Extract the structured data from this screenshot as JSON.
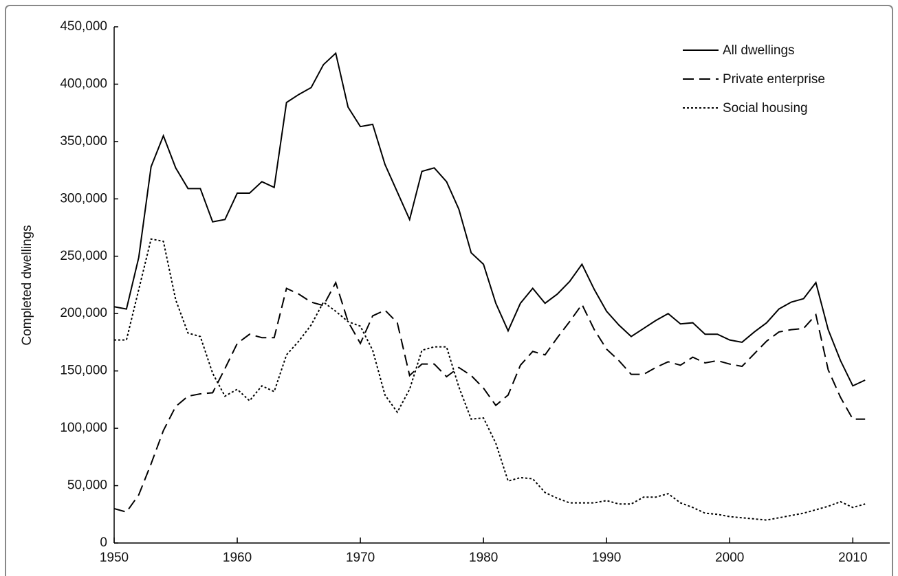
{
  "chart_data": {
    "type": "line",
    "y_label": "Completed dwellings",
    "x": [
      1950,
      1951,
      1952,
      1953,
      1954,
      1955,
      1956,
      1957,
      1958,
      1959,
      1960,
      1961,
      1962,
      1963,
      1964,
      1965,
      1966,
      1967,
      1968,
      1969,
      1970,
      1971,
      1972,
      1973,
      1974,
      1975,
      1976,
      1977,
      1978,
      1979,
      1980,
      1981,
      1982,
      1983,
      1984,
      1985,
      1986,
      1987,
      1988,
      1989,
      1990,
      1991,
      1992,
      1993,
      1994,
      1995,
      1996,
      1997,
      1998,
      1999,
      2000,
      2001,
      2002,
      2003,
      2004,
      2005,
      2006,
      2007,
      2008,
      2009,
      2010,
      2011
    ],
    "series": [
      {
        "name": "All dwellings",
        "color": "#000000",
        "dash": "solid",
        "values": [
          206000,
          204000,
          249000,
          328000,
          355000,
          327000,
          309000,
          309000,
          280000,
          282000,
          305000,
          305000,
          315000,
          310000,
          384000,
          391000,
          397000,
          417000,
          427000,
          380000,
          363000,
          365000,
          330000,
          306000,
          282000,
          324000,
          327000,
          315000,
          291000,
          253000,
          243000,
          209000,
          185000,
          209000,
          222000,
          209000,
          217000,
          228000,
          243000,
          221000,
          202000,
          190000,
          180000,
          187000,
          194000,
          200000,
          191000,
          192000,
          182000,
          182000,
          177000,
          175000,
          184000,
          192000,
          204000,
          210000,
          213000,
          227000,
          186000,
          159000,
          137000,
          142000
        ]
      },
      {
        "name": "Private enterprise",
        "color": "#000000",
        "dash": "dashed",
        "values": [
          30000,
          27000,
          42000,
          69000,
          98000,
          119000,
          128000,
          130000,
          131000,
          152000,
          174000,
          182000,
          179000,
          179000,
          222000,
          217000,
          210000,
          207000,
          227000,
          193000,
          174000,
          198000,
          203000,
          192000,
          146000,
          156000,
          156000,
          145000,
          153000,
          146000,
          135000,
          120000,
          129000,
          155000,
          167000,
          164000,
          179000,
          193000,
          208000,
          186000,
          169000,
          159000,
          147000,
          147000,
          153000,
          158000,
          155000,
          162000,
          157000,
          159000,
          156000,
          154000,
          165000,
          176000,
          184000,
          186000,
          187000,
          199000,
          151000,
          127000,
          108000,
          108000
        ]
      },
      {
        "name": "Social housing",
        "color": "#000000",
        "dash": "dotted",
        "values": [
          177000,
          177000,
          221000,
          265000,
          263000,
          212000,
          183000,
          180000,
          148000,
          128000,
          134000,
          124000,
          137000,
          132000,
          164000,
          176000,
          190000,
          210000,
          202000,
          193000,
          189000,
          168000,
          129000,
          114000,
          134000,
          168000,
          171000,
          171000,
          136000,
          108000,
          109000,
          87000,
          54000,
          57000,
          56000,
          44000,
          39000,
          35000,
          35000,
          35000,
          37000,
          34000,
          34000,
          40000,
          40000,
          43000,
          35000,
          31000,
          26000,
          25000,
          23000,
          22000,
          21000,
          20000,
          22000,
          24000,
          26000,
          29000,
          32000,
          36000,
          31000,
          34000
        ]
      }
    ],
    "xlim": [
      1950,
      2013
    ],
    "xticks": [
      1950,
      1960,
      1970,
      1980,
      1990,
      2000,
      2010
    ],
    "ylim": [
      0,
      450000
    ],
    "yticks": [
      0,
      {
        "value": 50000,
        "label": "50,000"
      },
      {
        "value": 100000,
        "label": "100,000"
      },
      {
        "value": 150000,
        "label": "150,000"
      },
      {
        "value": 200000,
        "label": "200,000"
      },
      {
        "value": 250000,
        "label": "250,000"
      },
      {
        "value": 300000,
        "label": "300,000"
      },
      {
        "value": 350000,
        "label": "350,000"
      },
      {
        "value": 400000,
        "label": "400,000"
      },
      {
        "value": 450000,
        "label": "450,000"
      }
    ],
    "grid": false,
    "legend": "upper right"
  }
}
